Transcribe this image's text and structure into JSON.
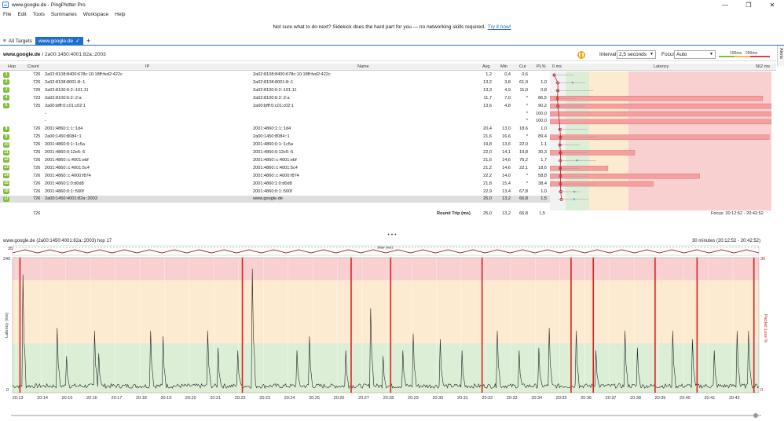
{
  "window": {
    "title": "www.google.de - PingPlotter Pro",
    "controls": [
      "—",
      "❐",
      "✕"
    ]
  },
  "menu": [
    "File",
    "Edit",
    "Tools",
    "Summaries",
    "Workspace",
    "Help"
  ],
  "banner": {
    "text": "Not sure what to do next? Sidekick does the hard part for you — no networking skills required.",
    "link": "Try it now!"
  },
  "tabs": {
    "all_targets": "All Targets",
    "active": "www.google.de",
    "add": "+"
  },
  "target": {
    "host": "www.google.de",
    "ip": "/ 2a00:1450:4001:82a::2003",
    "interval_label": "Interval",
    "interval_value": "2,5 seconds",
    "focus_label": "Focus",
    "focus_value": "Auto",
    "scale_100": "100ms",
    "scale_200": "200ms",
    "alerts": "Alerts"
  },
  "columns": {
    "hop": "Hop",
    "count": "Count",
    "ip": "IP",
    "name": "Name",
    "avg": "Avg",
    "min": "Min",
    "cur": "Cur",
    "pl": "PL%",
    "zero_ms": "0 ms",
    "latency": "Latency",
    "max_ms": "562 ms"
  },
  "hops": [
    {
      "hop": "1",
      "count": "726",
      "ip": "2a02:8108:8400:678c:10:18ff:fed2:422c",
      "name": "2a02:8108:8400:678c:10:18ff:fed2:422c",
      "avg": "1,2",
      "min": "0,4",
      "cur": "0,6",
      "pl": "",
      "plv": 0,
      "avgv": 1.2,
      "minv": 0.4,
      "curv": 0.6
    },
    {
      "hop": "2",
      "count": "726",
      "ip": "2a02:8108:8001:8::1",
      "name": "2a02:8108:8001:8::1",
      "avg": "13,2",
      "min": "3,8",
      "cur": "61,9",
      "pl": "1,0",
      "plv": 1.0,
      "avgv": 13.2,
      "minv": 3.8,
      "curv": 61.9
    },
    {
      "hop": "3",
      "count": "726",
      "ip": "2a02:8100:6:2::101:11",
      "name": "2a02:8100:6:2::101:11",
      "avg": "13,3",
      "min": "4,9",
      "cur": "11,0",
      "pl": "0,8",
      "plv": 0.8,
      "avgv": 13.3,
      "minv": 4.9,
      "curv": 11.0
    },
    {
      "hop": "4",
      "count": "723",
      "ip": "2a02:8100:6:2::2:a",
      "name": "2a02:8100:6:2::2:a",
      "avg": "11,7",
      "min": "7,0",
      "cur": "*",
      "pl": "86,5",
      "plv": 86.5,
      "avgv": 11.7,
      "minv": 7.0,
      "curv": null
    },
    {
      "hop": "5",
      "count": "725",
      "ip": "2a00:bfff:0:c01:c02:1",
      "name": "2a00:bfff:0:c01:c02:1",
      "avg": "13,6",
      "min": "4,8",
      "cur": "*",
      "pl": "90,2",
      "plv": 90.2,
      "avgv": 13.6,
      "minv": 4.8,
      "curv": null
    },
    {
      "hop": "",
      "count": "",
      "ip": "-",
      "name": "",
      "avg": "",
      "min": "",
      "cur": "*",
      "pl": "100,0",
      "plv": 100,
      "avgv": null,
      "minv": null,
      "curv": null
    },
    {
      "hop": "",
      "count": "",
      "ip": "-",
      "name": "",
      "avg": "",
      "min": "",
      "cur": "*",
      "pl": "100,0",
      "plv": 100,
      "avgv": null,
      "minv": null,
      "curv": null
    },
    {
      "hop": "8",
      "count": "726",
      "ip": "2001:4860:1:1::1d4",
      "name": "2001:4860:1:1::1d4",
      "avg": "20,4",
      "min": "13,0",
      "cur": "18,6",
      "pl": "1,0",
      "plv": 1.0,
      "avgv": 20.4,
      "minv": 13.0,
      "curv": 18.6
    },
    {
      "hop": "9",
      "count": "725",
      "ip": "2a00:1450:8084::1",
      "name": "2a00:1450:8084::1",
      "avg": "21,6",
      "min": "16,6",
      "cur": "*",
      "pl": "89,4",
      "plv": 89.4,
      "avgv": 21.6,
      "minv": 16.6,
      "curv": null
    },
    {
      "hop": "10",
      "count": "726",
      "ip": "2001:4860:0:1::1c5a",
      "name": "2001:4860:0:1::1c5a",
      "avg": "19,8",
      "min": "13,6",
      "cur": "22,0",
      "pl": "1,1",
      "plv": 1.1,
      "avgv": 19.8,
      "minv": 13.6,
      "curv": 22.0
    },
    {
      "hop": "11",
      "count": "726",
      "ip": "2001:4860:0:12e5::5",
      "name": "2001:4860:0:12e5::5",
      "avg": "22,0",
      "min": "14,1",
      "cur": "19,8",
      "pl": "30,3",
      "plv": 30.3,
      "avgv": 22.0,
      "minv": 14.1,
      "curv": 19.8
    },
    {
      "hop": "12",
      "count": "726",
      "ip": "2001:4860::c:4001:ebf",
      "name": "2001:4860::c:4001:ebf",
      "avg": "21,6",
      "min": "14,6",
      "cur": "76,2",
      "pl": "1,7",
      "plv": 1.7,
      "avgv": 21.6,
      "minv": 14.6,
      "curv": 76.2
    },
    {
      "hop": "13",
      "count": "726",
      "ip": "2001:4860::c:4001:5c4",
      "name": "2001:4860::c:4001:5c4",
      "avg": "21,2",
      "min": "14,6",
      "cur": "22,1",
      "pl": "18,6",
      "plv": 18.6,
      "avgv": 21.2,
      "minv": 14.6,
      "curv": 22.1
    },
    {
      "hop": "14",
      "count": "726",
      "ip": "2001:4860::c:4000:f874",
      "name": "2001:4860::c:4000:f874",
      "avg": "22,2",
      "min": "14,0",
      "cur": "*",
      "pl": "58,8",
      "plv": 58.8,
      "avgv": 22.2,
      "minv": 14.0,
      "curv": null
    },
    {
      "hop": "15",
      "count": "726",
      "ip": "2001:4860:1:0:d0d8",
      "name": "2001:4860:1:0:d0d8",
      "avg": "21,8",
      "min": "15,4",
      "cur": "*",
      "pl": "38,4",
      "plv": 38.4,
      "avgv": 21.8,
      "minv": 15.4,
      "curv": null
    },
    {
      "hop": "16",
      "count": "726",
      "ip": "2001:4860:0:1::500f",
      "name": "2001:4860:0:1::500f",
      "avg": "22,9",
      "min": "13,4",
      "cur": "67,8",
      "pl": "1,0",
      "plv": 1.0,
      "avgv": 22.9,
      "minv": 13.4,
      "curv": 67.8
    },
    {
      "hop": "17",
      "count": "726",
      "ip": "2a00:1450:4001:82a::2003",
      "name": "www.google.de",
      "avg": "25,0",
      "min": "13,2",
      "cur": "66,8",
      "pl": "1,5",
      "plv": 1.5,
      "avgv": 25.0,
      "minv": 13.2,
      "curv": 66.8
    }
  ],
  "footer": {
    "count": "726",
    "label": "Round Trip (ms)",
    "avg": "25,0",
    "min": "13,2",
    "cur": "66,8",
    "pl": "1,5",
    "focus": "Focus: 20:12:52 - 20:42:52"
  },
  "divider": "• • •",
  "chart_data": {
    "type": "line",
    "title": "www.google.de (2a00:1450:4001:82a::2003) hop 17",
    "range": "30 minutes (20:12:52 - 20:42:52)",
    "jitter_label": "Jitter (ms)",
    "jitter_max": "35",
    "ylabel": "Latency (ms)",
    "y2label": "Packet Loss %",
    "ylim": [
      0,
      240
    ],
    "y_ticks": [
      "240",
      "0"
    ],
    "y2_ticks": [
      "30",
      "0"
    ],
    "x_ticks": [
      "20:13",
      "20:14",
      "20:15",
      "20:16",
      "20:17",
      "20:18",
      "20:19",
      "20:20",
      "20:21",
      "20:22",
      "20:23",
      "20:24",
      "20:25",
      "20:26",
      "20:27",
      "20:28",
      "20:29",
      "20:30",
      "20:31",
      "20:32",
      "20:33",
      "20:34",
      "20:35",
      "20:36",
      "20:37",
      "20:38",
      "20:39",
      "20:40",
      "20:41",
      "20:42"
    ],
    "zones": [
      {
        "from": 0,
        "to": 88,
        "color": "#dcefd6"
      },
      {
        "from": 88,
        "to": 200,
        "color": "#fdebd1"
      },
      {
        "from": 200,
        "to": 240,
        "color": "#f8d0d0"
      }
    ],
    "spikes": [
      {
        "t": 0.4,
        "v": 210
      },
      {
        "t": 1.8,
        "v": 115
      },
      {
        "t": 2.2,
        "v": 65
      },
      {
        "t": 3.3,
        "v": 110
      },
      {
        "t": 3.5,
        "v": 70
      },
      {
        "t": 5.6,
        "v": 110
      },
      {
        "t": 6.1,
        "v": 100
      },
      {
        "t": 7.9,
        "v": 110
      },
      {
        "t": 8.3,
        "v": 80
      },
      {
        "t": 9.1,
        "v": 75
      },
      {
        "t": 9.7,
        "v": 220
      },
      {
        "t": 11.5,
        "v": 75
      },
      {
        "t": 12.0,
        "v": 100
      },
      {
        "t": 13.5,
        "v": 75
      },
      {
        "t": 14.5,
        "v": 150
      },
      {
        "t": 15.0,
        "v": 65
      },
      {
        "t": 15.8,
        "v": 75
      },
      {
        "t": 16.2,
        "v": 105
      },
      {
        "t": 17.3,
        "v": 95
      },
      {
        "t": 18.2,
        "v": 75
      },
      {
        "t": 19.6,
        "v": 110
      },
      {
        "t": 20.5,
        "v": 75
      },
      {
        "t": 21.3,
        "v": 80
      },
      {
        "t": 21.7,
        "v": 115
      },
      {
        "t": 22.8,
        "v": 110
      },
      {
        "t": 23.6,
        "v": 75
      },
      {
        "t": 24.8,
        "v": 110
      },
      {
        "t": 25.3,
        "v": 80
      },
      {
        "t": 26.7,
        "v": 110
      },
      {
        "t": 27.5,
        "v": 95
      },
      {
        "t": 28.4,
        "v": 75
      },
      {
        "t": 29.3,
        "v": 110
      },
      {
        "t": 29.8,
        "v": 110
      }
    ],
    "loss_events": [
      0.3,
      9.3,
      13.7,
      15.3,
      19.0,
      22.6,
      23.5,
      26.0,
      27.7,
      30.0
    ],
    "loss_y": 30,
    "timeline": "30 minutes",
    "baseline": 12
  },
  "colors": {
    "green_zone": "#dcefd6",
    "yellow_zone": "#fdebd1",
    "red_zone": "#f8d0d0",
    "loss_bar": "#e02020",
    "hop_badge": "#7fbf3a",
    "accent": "#1c6fcf"
  }
}
